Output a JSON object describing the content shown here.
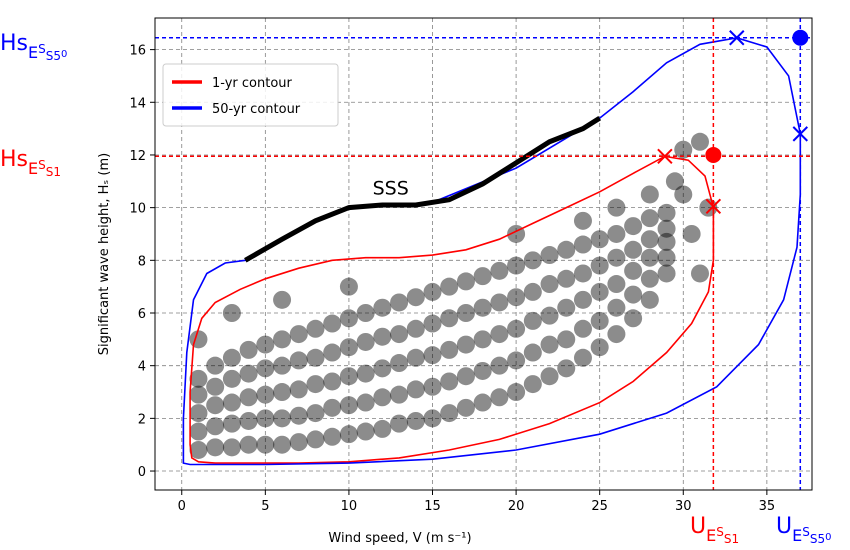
{
  "chart_data": {
    "type": "scatter",
    "xlabel": "Wind speed, V (m s⁻¹)",
    "ylabel": "Significant wave height, Hₛ (m)",
    "xlim": [
      -1.6,
      37.7
    ],
    "ylim": [
      -0.72,
      17.2
    ],
    "xticks": [
      0,
      5,
      10,
      15,
      20,
      25,
      30,
      35
    ],
    "yticks": [
      0,
      2,
      4,
      6,
      8,
      10,
      12,
      14,
      16
    ],
    "grid": true,
    "legend": "upper left",
    "scatter": {
      "color": "#000000",
      "x": [
        1,
        1,
        1,
        1,
        1,
        2,
        2,
        2,
        2,
        2,
        3,
        3,
        3,
        3,
        3,
        4,
        4,
        4,
        4,
        4,
        5,
        5,
        5,
        5,
        5,
        6,
        6,
        6,
        6,
        6,
        7,
        7,
        7,
        7,
        7,
        8,
        8,
        8,
        8,
        8,
        9,
        9,
        9,
        9,
        9,
        10,
        10,
        10,
        10,
        10,
        11,
        11,
        11,
        11,
        11,
        12,
        12,
        12,
        12,
        12,
        13,
        13,
        13,
        13,
        13,
        14,
        14,
        14,
        14,
        14,
        15,
        15,
        15,
        15,
        15,
        16,
        16,
        16,
        16,
        16,
        17,
        17,
        17,
        17,
        17,
        18,
        18,
        18,
        18,
        18,
        19,
        19,
        19,
        19,
        19,
        20,
        20,
        20,
        20,
        20,
        21,
        21,
        21,
        21,
        21,
        22,
        22,
        22,
        22,
        22,
        23,
        23,
        23,
        23,
        23,
        24,
        24,
        24,
        24,
        24,
        25,
        25,
        25,
        25,
        25,
        26,
        26,
        26,
        26,
        26,
        27,
        27,
        27,
        27,
        27,
        28,
        28,
        28,
        28,
        28,
        29,
        29,
        29,
        29,
        29,
        30,
        30.5,
        31,
        30,
        31.5,
        29.5,
        28,
        26,
        24,
        3,
        6,
        10,
        20,
        31,
        1
      ],
      "values": [
        0.8,
        1.5,
        2.2,
        2.9,
        3.5,
        0.9,
        1.7,
        2.5,
        3.2,
        4.0,
        0.9,
        1.8,
        2.6,
        3.5,
        4.3,
        1.0,
        1.9,
        2.8,
        3.7,
        4.6,
        1.0,
        2.0,
        2.9,
        3.9,
        4.8,
        1.0,
        2.0,
        3.0,
        4.0,
        5.0,
        1.1,
        2.1,
        3.1,
        4.2,
        5.2,
        1.2,
        2.2,
        3.3,
        4.3,
        5.4,
        1.3,
        2.4,
        3.4,
        4.5,
        5.6,
        1.4,
        2.5,
        3.6,
        4.7,
        5.8,
        1.5,
        2.6,
        3.7,
        4.9,
        6.0,
        1.6,
        2.8,
        3.9,
        5.1,
        6.2,
        1.8,
        2.9,
        4.1,
        5.2,
        6.4,
        1.9,
        3.1,
        4.3,
        5.4,
        6.6,
        2.0,
        3.2,
        4.4,
        5.6,
        6.8,
        2.2,
        3.4,
        4.6,
        5.8,
        7.0,
        2.4,
        3.6,
        4.8,
        6.0,
        7.2,
        2.6,
        3.8,
        5.0,
        6.2,
        7.4,
        2.8,
        4.0,
        5.2,
        6.4,
        7.6,
        3.0,
        4.2,
        5.4,
        6.6,
        7.8,
        3.3,
        4.5,
        5.7,
        6.8,
        8.0,
        3.6,
        4.8,
        5.9,
        7.1,
        8.2,
        3.9,
        5.0,
        6.2,
        7.3,
        8.4,
        4.3,
        5.4,
        6.5,
        7.5,
        8.6,
        4.7,
        5.7,
        6.8,
        7.8,
        8.8,
        5.2,
        6.2,
        7.1,
        8.1,
        9.0,
        5.8,
        6.7,
        7.6,
        8.4,
        9.3,
        6.5,
        7.3,
        8.1,
        8.8,
        9.6,
        7.5,
        8.1,
        8.7,
        9.2,
        9.8,
        10.5,
        9.0,
        12.5,
        12.2,
        10.0,
        11.0,
        10.5,
        10.0,
        9.5,
        6.0,
        6.5,
        7.0,
        9.0,
        7.5,
        5.0
      ]
    },
    "series": [
      {
        "name": "1-yr contour",
        "color": "#ff0000",
        "x": [
          0.5,
          0.5,
          0.7,
          1.2,
          2.0,
          3.5,
          5,
          7,
          9,
          11,
          13,
          15,
          17,
          19,
          21,
          23,
          25,
          27,
          28.9,
          30.3,
          31.3,
          31.8,
          31.8,
          31.5,
          30.5,
          29,
          27,
          25,
          22,
          19,
          16,
          13,
          10,
          7,
          4,
          2,
          1,
          0.6
        ],
        "values": [
          1.0,
          3.0,
          4.8,
          5.8,
          6.4,
          6.9,
          7.3,
          7.7,
          8.0,
          8.1,
          8.1,
          8.2,
          8.4,
          8.8,
          9.4,
          10.0,
          10.6,
          11.3,
          11.95,
          11.8,
          11.2,
          10.0,
          8.0,
          6.8,
          5.6,
          4.5,
          3.4,
          2.6,
          1.8,
          1.2,
          0.8,
          0.5,
          0.35,
          0.3,
          0.3,
          0.3,
          0.35,
          0.5
        ]
      },
      {
        "name": "50-yr contour",
        "color": "#0000ff",
        "x": [
          0.1,
          0.1,
          0.3,
          0.7,
          1.5,
          2.6,
          3.8,
          7,
          10,
          15,
          20,
          25,
          27,
          29,
          31,
          33.2,
          35,
          36.3,
          37,
          37,
          36.8,
          36,
          34.5,
          32,
          29,
          25,
          20,
          15,
          10,
          5,
          2,
          0.5,
          0.1
        ],
        "values": [
          0.3,
          2.0,
          4.5,
          6.5,
          7.5,
          7.9,
          8.0,
          9.2,
          10.0,
          10.2,
          11.5,
          13.4,
          14.4,
          15.5,
          16.2,
          16.45,
          16.1,
          15.0,
          12.8,
          10.5,
          8.5,
          6.5,
          4.8,
          3.2,
          2.2,
          1.4,
          0.8,
          0.45,
          0.3,
          0.25,
          0.25,
          0.25,
          0.3
        ]
      }
    ],
    "sss": {
      "label": "SSS",
      "color": "#000000",
      "x": [
        3.8,
        6,
        8,
        10,
        12,
        14,
        16,
        18,
        20,
        22,
        24,
        25
      ],
      "values": [
        8.0,
        8.8,
        9.5,
        10.0,
        10.1,
        10.1,
        10.3,
        10.9,
        11.7,
        12.5,
        13.0,
        13.4
      ]
    },
    "reference_lines": [
      {
        "orientation": "h",
        "value": 11.95,
        "color": "#ff0000"
      },
      {
        "orientation": "v",
        "value": 31.8,
        "color": "#ff0000"
      },
      {
        "orientation": "h",
        "value": 16.45,
        "color": "#0000ff"
      },
      {
        "orientation": "v",
        "value": 37,
        "color": "#0000ff"
      }
    ],
    "markers": [
      {
        "shape": "x",
        "color": "#ff0000",
        "x": 28.9,
        "y": 11.95
      },
      {
        "shape": "x",
        "color": "#ff0000",
        "x": 31.8,
        "y": 10.05
      },
      {
        "shape": "o",
        "color": "#ff0000",
        "x": 31.8,
        "y": 12.0
      },
      {
        "shape": "x",
        "color": "#0000ff",
        "x": 33.2,
        "y": 16.45
      },
      {
        "shape": "x",
        "color": "#0000ff",
        "x": 37,
        "y": 12.8
      },
      {
        "shape": "o",
        "color": "#0000ff",
        "x": 37,
        "y": 16.45
      }
    ],
    "annotations": [
      {
        "parts": [
          "Hs",
          "E",
          "S",
          "S5",
          "0"
        ],
        "color": "#0000ff"
      },
      {
        "parts": [
          "Hs",
          "E",
          "S",
          "S1"
        ],
        "color": "#ff0000"
      },
      {
        "parts": [
          "U",
          "E",
          "S",
          "S1"
        ],
        "color": "#ff0000"
      },
      {
        "parts": [
          "U",
          "E",
          "S",
          "S5",
          "0"
        ],
        "color": "#0000ff"
      }
    ]
  }
}
